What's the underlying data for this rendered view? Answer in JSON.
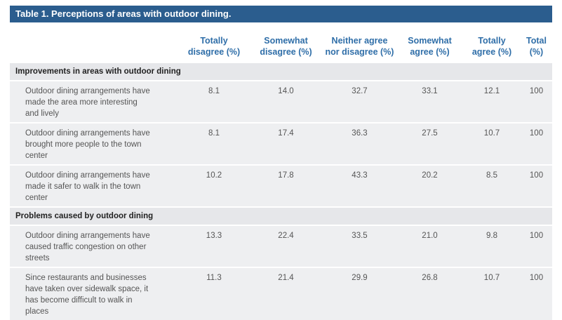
{
  "title": "Table 1. Perceptions of areas with outdoor dining.",
  "table": {
    "columns": [
      "Totally disagree (%)",
      "Somewhat disagree (%)",
      "Neither agree nor disagree (%)",
      "Somewhat agree (%)",
      "Totally agree (%)",
      "Total (%)"
    ],
    "sections": [
      {
        "heading": "Improvements in areas with outdoor dining",
        "rows": [
          {
            "label": "Outdoor dining arrangements have made the area more interesting and lively",
            "values": [
              "8.1",
              "14.0",
              "32.7",
              "33.1",
              "12.1",
              "100"
            ]
          },
          {
            "label": "Outdoor dining arrangements have brought more people to the town center",
            "values": [
              "8.1",
              "17.4",
              "36.3",
              "27.5",
              "10.7",
              "100"
            ]
          },
          {
            "label": "Outdoor dining arrangements have made it safer to walk in the town center",
            "values": [
              "10.2",
              "17.8",
              "43.3",
              "20.2",
              "8.5",
              "100"
            ]
          }
        ]
      },
      {
        "heading": "Problems caused by outdoor dining",
        "rows": [
          {
            "label": "Outdoor dining arrangements have caused traffic congestion on other streets",
            "values": [
              "13.3",
              "22.4",
              "33.5",
              "21.0",
              "9.8",
              "100"
            ]
          },
          {
            "label": "Since restaurants and businesses have taken over sidewalk space, it has become difficult to walk in places",
            "values": [
              "11.3",
              "21.4",
              "29.9",
              "26.8",
              "10.7",
              "100"
            ]
          }
        ]
      }
    ]
  }
}
